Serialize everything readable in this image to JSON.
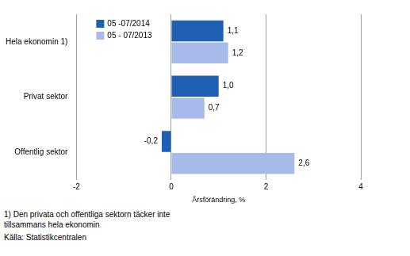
{
  "chart_data": {
    "type": "bar",
    "orientation": "horizontal",
    "categories": [
      "Hela ekonomin 1)",
      "Privat sektor",
      "Offentlig sektor"
    ],
    "series": [
      {
        "name": "05 -07/2014",
        "color": "#1f5fb4",
        "values": [
          1.1,
          1.0,
          -0.2
        ],
        "value_labels": [
          "1,1",
          "1,0",
          "-0,2"
        ]
      },
      {
        "name": "05 - 07/2013",
        "color": "#a7bbea",
        "values": [
          1.2,
          0.7,
          2.6
        ],
        "value_labels": [
          "1,2",
          "0,7",
          "2,6"
        ]
      }
    ],
    "x_label": "Årsförändring, %",
    "xlim": [
      -2,
      4
    ],
    "xticks": [
      -2,
      0,
      2,
      4
    ],
    "grid": true,
    "legend": "upper left",
    "data_labels": true,
    "annotations": [
      "1) Den privata och offentliga sektorn täcker inte tillsammans hela ekonomin",
      "Källa: Statistikcentralen"
    ]
  }
}
